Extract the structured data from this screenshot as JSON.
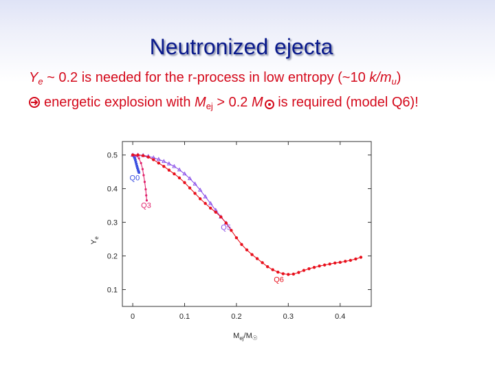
{
  "slide": {
    "title": "Neutronized ejecta",
    "bullet1": {
      "ye_var": "Y",
      "ye_sub": "e",
      "text_mid": " ~ 0.2 is needed for the r-process in low entropy (~10 ",
      "unit_k": "k/m",
      "unit_sub": "u",
      "close": ")"
    },
    "bullet2": {
      "text_a": "energetic explosion with ",
      "m_var": "M",
      "m_sub": "ej",
      "text_b": " > 0.2 ",
      "msun_var": "M",
      "text_c": " is required (model Q6)!"
    }
  },
  "colors": {
    "title": "#0a1a8c",
    "bullet_text": "#d4081a",
    "q0": "#3a4fe0",
    "q3": "#e0206a",
    "q5": "#8a4fe8",
    "q6": "#e8101c"
  },
  "chart_data": {
    "type": "scatter",
    "xlabel": "M_ej/M_☉",
    "ylabel": "Y_e",
    "xlim": [
      -0.02,
      0.46
    ],
    "ylim": [
      0.05,
      0.54
    ],
    "xticks": [
      0,
      0.1,
      0.2,
      0.3,
      0.4
    ],
    "yticks": [
      0.1,
      0.2,
      0.3,
      0.4,
      0.5
    ],
    "grid": false,
    "series": [
      {
        "name": "Q0",
        "color": "#3a4fe0",
        "marker": "square",
        "x": [
          0.0,
          0.001,
          0.002,
          0.003,
          0.004,
          0.005,
          0.006,
          0.007,
          0.008,
          0.009,
          0.01,
          0.011,
          0.012
        ],
        "y": [
          0.5,
          0.499,
          0.497,
          0.494,
          0.49,
          0.485,
          0.479,
          0.473,
          0.467,
          0.462,
          0.457,
          0.452,
          0.448
        ]
      },
      {
        "name": "Q3",
        "color": "#e0206a",
        "marker": "dot",
        "x": [
          0.0,
          0.004,
          0.008,
          0.012,
          0.016,
          0.019,
          0.021,
          0.023,
          0.025,
          0.026,
          0.027
        ],
        "y": [
          0.5,
          0.499,
          0.497,
          0.49,
          0.476,
          0.458,
          0.44,
          0.42,
          0.398,
          0.38,
          0.365
        ]
      },
      {
        "name": "Q5",
        "color": "#8a4fe8",
        "marker": "triangle",
        "x": [
          0.0,
          0.01,
          0.02,
          0.03,
          0.04,
          0.05,
          0.06,
          0.07,
          0.08,
          0.09,
          0.1,
          0.11,
          0.12,
          0.13,
          0.14,
          0.15,
          0.16,
          0.17,
          0.18
        ],
        "y": [
          0.5,
          0.5,
          0.499,
          0.496,
          0.492,
          0.487,
          0.481,
          0.474,
          0.466,
          0.456,
          0.444,
          0.43,
          0.414,
          0.396,
          0.376,
          0.356,
          0.336,
          0.316,
          0.298
        ]
      },
      {
        "name": "Q6",
        "color": "#e8101c",
        "marker": "dot",
        "x": [
          0.0,
          0.01,
          0.02,
          0.03,
          0.04,
          0.05,
          0.06,
          0.07,
          0.08,
          0.09,
          0.1,
          0.11,
          0.12,
          0.13,
          0.14,
          0.15,
          0.16,
          0.17,
          0.18,
          0.19,
          0.2,
          0.21,
          0.22,
          0.23,
          0.24,
          0.25,
          0.26,
          0.27,
          0.28,
          0.29,
          0.3,
          0.31,
          0.32,
          0.33,
          0.34,
          0.35,
          0.36,
          0.37,
          0.38,
          0.39,
          0.4,
          0.41,
          0.42,
          0.43,
          0.44
        ],
        "y": [
          0.5,
          0.5,
          0.498,
          0.494,
          0.486,
          0.476,
          0.466,
          0.455,
          0.444,
          0.432,
          0.418,
          0.402,
          0.386,
          0.37,
          0.356,
          0.342,
          0.33,
          0.316,
          0.298,
          0.276,
          0.254,
          0.234,
          0.218,
          0.204,
          0.192,
          0.18,
          0.168,
          0.159,
          0.152,
          0.147,
          0.145,
          0.146,
          0.151,
          0.157,
          0.162,
          0.166,
          0.17,
          0.173,
          0.176,
          0.179,
          0.181,
          0.184,
          0.187,
          0.191,
          0.196
        ]
      }
    ],
    "annotations": [
      {
        "text": "Q0",
        "x": -0.006,
        "y": 0.425,
        "color": "#3a4fe0"
      },
      {
        "text": "Q3",
        "x": 0.016,
        "y": 0.343,
        "color": "#e0206a"
      },
      {
        "text": "Q5",
        "x": 0.17,
        "y": 0.278,
        "color": "#8a4fe8"
      },
      {
        "text": "Q6",
        "x": 0.272,
        "y": 0.122,
        "color": "#e8101c"
      }
    ]
  }
}
